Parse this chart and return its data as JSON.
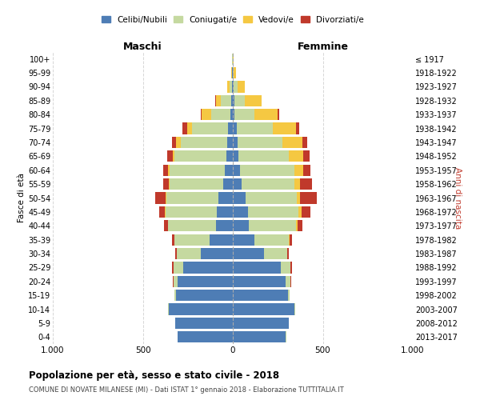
{
  "age_groups": [
    "0-4",
    "5-9",
    "10-14",
    "15-19",
    "20-24",
    "25-29",
    "30-34",
    "35-39",
    "40-44",
    "45-49",
    "50-54",
    "55-59",
    "60-64",
    "65-69",
    "70-74",
    "75-79",
    "80-84",
    "85-89",
    "90-94",
    "95-99",
    "100+"
  ],
  "birth_years": [
    "2013-2017",
    "2008-2012",
    "2003-2007",
    "1998-2002",
    "1993-1997",
    "1988-1992",
    "1983-1987",
    "1978-1982",
    "1973-1977",
    "1968-1972",
    "1963-1967",
    "1958-1962",
    "1953-1957",
    "1948-1952",
    "1943-1947",
    "1938-1942",
    "1933-1937",
    "1928-1932",
    "1923-1927",
    "1918-1922",
    "≤ 1917"
  ],
  "male_celibe": [
    305,
    320,
    355,
    315,
    305,
    275,
    180,
    130,
    95,
    90,
    80,
    55,
    45,
    35,
    30,
    25,
    12,
    10,
    5,
    3,
    2
  ],
  "male_coniugato": [
    1,
    2,
    5,
    10,
    25,
    55,
    130,
    195,
    265,
    285,
    290,
    295,
    305,
    290,
    260,
    200,
    110,
    55,
    15,
    3,
    1
  ],
  "male_vedovo": [
    0,
    0,
    0,
    0,
    0,
    1,
    1,
    1,
    1,
    2,
    3,
    5,
    8,
    10,
    25,
    30,
    50,
    30,
    10,
    2,
    0
  ],
  "male_divorziato": [
    0,
    0,
    0,
    1,
    2,
    5,
    10,
    10,
    20,
    30,
    60,
    30,
    30,
    30,
    25,
    25,
    5,
    2,
    0,
    0,
    0
  ],
  "female_celibe": [
    295,
    310,
    340,
    305,
    295,
    265,
    175,
    120,
    90,
    85,
    70,
    50,
    40,
    30,
    25,
    20,
    10,
    8,
    5,
    2,
    1
  ],
  "female_coniugata": [
    1,
    2,
    5,
    10,
    25,
    55,
    125,
    190,
    260,
    280,
    285,
    290,
    300,
    280,
    250,
    200,
    110,
    60,
    20,
    4,
    1
  ],
  "female_vedova": [
    0,
    0,
    0,
    0,
    1,
    2,
    3,
    5,
    8,
    15,
    20,
    35,
    50,
    80,
    110,
    130,
    130,
    90,
    40,
    10,
    2
  ],
  "female_divorziata": [
    0,
    0,
    0,
    1,
    2,
    5,
    10,
    15,
    30,
    50,
    90,
    65,
    40,
    35,
    30,
    20,
    8,
    3,
    1,
    0,
    0
  ],
  "colors": {
    "celibe": "#4e7db5",
    "coniugato": "#c5d9a0",
    "vedovo": "#f5c842",
    "divorziato": "#c0392b"
  },
  "title": "Popolazione per età, sesso e stato civile - 2018",
  "subtitle": "COMUNE DI NOVATE MILANESE (MI) - Dati ISTAT 1° gennaio 2018 - Elaborazione TUTTITALIA.IT",
  "xlabel_left": "Maschi",
  "xlabel_right": "Femmine",
  "ylabel_left": "Fasce di età",
  "ylabel_right": "Anni di nascita",
  "xlim": 1000,
  "bg_color": "#ffffff",
  "grid_color": "#cccccc"
}
